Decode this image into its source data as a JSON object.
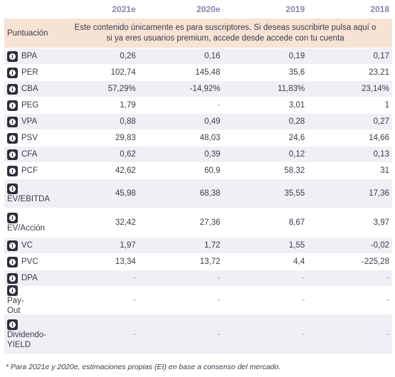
{
  "years": [
    "2021e",
    "2020e",
    "2019",
    "2018"
  ],
  "puntuacion_label": "Puntuación",
  "promo_line1": "Este contenido únicamente es para suscriptores. Si deseas suscribirte pulsa aquí o",
  "promo_line2": "si ya eres usuarios premium, accede desde accede con tu cuenta",
  "info_icon_glyph": "i",
  "rows": [
    {
      "label": "BPA",
      "values": [
        "0,26",
        "0,16",
        "0,19",
        "0,17"
      ]
    },
    {
      "label": "PER",
      "values": [
        "102,74",
        "145,48",
        "35,6",
        "23,21"
      ]
    },
    {
      "label": "CBA",
      "values": [
        "57,29%",
        "-14,92%",
        "11,83%",
        "23,14%"
      ]
    },
    {
      "label": "PEG",
      "values": [
        "1,79",
        "-",
        "3,01",
        "1"
      ]
    },
    {
      "label": "VPA",
      "values": [
        "0,88",
        "0,49",
        "0,28",
        "0,27"
      ]
    },
    {
      "label": "PSV",
      "values": [
        "29,83",
        "48,03",
        "24,6",
        "14,66"
      ]
    },
    {
      "label": "CFA",
      "values": [
        "0,62",
        "0,39",
        "0,12",
        "0,13"
      ]
    },
    {
      "label": "PCF",
      "values": [
        "42,62",
        "60,9",
        "58,32",
        "31"
      ]
    },
    {
      "label": "EV/EBITDA",
      "values": [
        "45,98",
        "68,38",
        "35,55",
        "17,36"
      ]
    },
    {
      "label": "EV/Acción",
      "values": [
        "32,42",
        "27,36",
        "8,67",
        "3,97"
      ]
    },
    {
      "label": "VC",
      "values": [
        "1,97",
        "1,72",
        "1,55",
        "-0,02"
      ]
    },
    {
      "label": "PVC",
      "values": [
        "13,34",
        "13,72",
        "4,4",
        "-225,28"
      ]
    },
    {
      "label": "DPA",
      "values": [
        "-",
        "-",
        "-",
        "-"
      ]
    },
    {
      "label": "Pay-Out",
      "label_lines": [
        "Pay-",
        "Out"
      ],
      "values": [
        "-",
        "-",
        "-",
        "-"
      ]
    },
    {
      "label": "Dividendo-YIELD",
      "label_lines": [
        "Dividendo-",
        "YIELD"
      ],
      "values": [
        "-",
        "-",
        "-",
        "-"
      ]
    }
  ],
  "footnote": "* Para 2021e y 2020e, estimaciones propias (EI) en base a consenso del mercado."
}
